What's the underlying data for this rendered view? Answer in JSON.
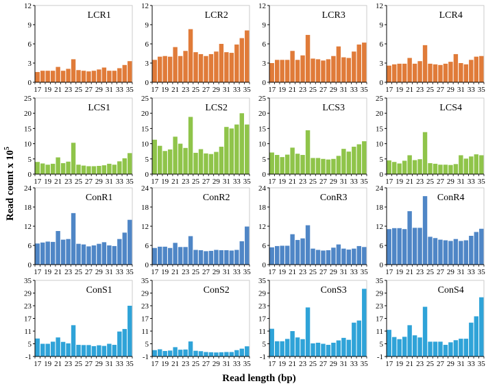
{
  "figure": {
    "ylabel": "Read count x 10",
    "ylabel_sup": "5",
    "xlabel": "Read length (bp)"
  },
  "colors": {
    "LCR": "#e07b39",
    "LCS": "#8fc44a",
    "ConR": "#4f86c6",
    "ConS": "#2fa3d8"
  },
  "chart_data": [
    {
      "type": "bar",
      "panels": [
        {
          "title": "LCR1",
          "values": [
            1.6,
            1.8,
            1.8,
            1.8,
            2.4,
            1.8,
            2.1,
            3.6,
            1.9,
            1.8,
            1.7,
            1.8,
            2.0,
            2.3,
            1.8,
            1.8,
            2.2,
            2.7,
            3.3
          ]
        },
        {
          "title": "LCR2",
          "values": [
            3.5,
            4.0,
            4.1,
            4.0,
            5.5,
            4.1,
            4.9,
            8.3,
            4.7,
            4.4,
            4.1,
            4.4,
            4.8,
            6.0,
            4.7,
            4.6,
            5.9,
            6.9,
            8.1
          ]
        },
        {
          "title": "LCR3",
          "values": [
            3.0,
            3.5,
            3.5,
            3.5,
            4.9,
            3.5,
            4.2,
            7.4,
            3.7,
            3.6,
            3.4,
            3.6,
            4.1,
            5.6,
            3.9,
            3.8,
            4.8,
            5.9,
            6.2
          ]
        },
        {
          "title": "LCR4",
          "values": [
            2.6,
            2.8,
            2.9,
            2.9,
            3.8,
            2.9,
            3.3,
            5.8,
            2.9,
            2.8,
            2.7,
            2.9,
            3.2,
            4.4,
            3.0,
            2.8,
            3.5,
            4.0,
            4.1
          ]
        }
      ],
      "categories": [
        "17",
        "18",
        "19",
        "20",
        "21",
        "22",
        "23",
        "24",
        "25",
        "26",
        "27",
        "28",
        "29",
        "30",
        "31",
        "32",
        "33",
        "34",
        "35"
      ],
      "tick_labels": [
        "17",
        "19",
        "21",
        "23",
        "25",
        "27",
        "29",
        "31",
        "33",
        "35"
      ],
      "yticks": [
        "0",
        "3",
        "6",
        "9",
        "12"
      ],
      "ylim": [
        0,
        12
      ]
    },
    {
      "type": "bar",
      "panels": [
        {
          "title": "LCS1",
          "values": [
            4.0,
            3.5,
            3.1,
            3.4,
            5.5,
            3.6,
            4.1,
            10.3,
            3.1,
            2.8,
            2.6,
            2.6,
            2.7,
            2.9,
            3.4,
            3.1,
            4.2,
            5.2,
            6.9
          ]
        },
        {
          "title": "LCS2",
          "values": [
            11.3,
            9.3,
            7.6,
            8.1,
            12.3,
            10.0,
            8.6,
            18.8,
            7.0,
            8.2,
            6.8,
            6.6,
            7.3,
            9.0,
            15.5,
            15.0,
            16.3,
            20.0,
            16.3
          ]
        },
        {
          "title": "LCS3",
          "values": [
            7.1,
            6.3,
            5.6,
            6.4,
            8.7,
            6.7,
            6.3,
            14.4,
            5.3,
            5.3,
            5.0,
            4.8,
            5.0,
            6.0,
            8.3,
            7.4,
            9.0,
            9.8,
            10.8
          ]
        },
        {
          "title": "LCS4",
          "values": [
            4.5,
            4.0,
            3.5,
            4.4,
            6.2,
            4.6,
            4.9,
            13.8,
            3.6,
            3.4,
            3.1,
            3.1,
            3.0,
            3.3,
            6.2,
            5.1,
            5.8,
            6.5,
            6.2
          ]
        }
      ],
      "categories": [
        "17",
        "18",
        "19",
        "20",
        "21",
        "22",
        "23",
        "24",
        "25",
        "26",
        "27",
        "28",
        "29",
        "30",
        "31",
        "32",
        "33",
        "34",
        "35"
      ],
      "tick_labels": [
        "17",
        "19",
        "21",
        "23",
        "25",
        "27",
        "29",
        "31",
        "33",
        "35"
      ],
      "yticks": [
        "0",
        "5",
        "10",
        "15",
        "20",
        "25"
      ],
      "ylim": [
        0,
        25
      ]
    },
    {
      "type": "bar",
      "panels": [
        {
          "title": "ConR1",
          "values": [
            6.6,
            6.9,
            7.2,
            7.1,
            10.5,
            7.8,
            8.0,
            16.1,
            6.5,
            6.3,
            5.7,
            6.0,
            6.5,
            7.0,
            6.0,
            5.8,
            8.0,
            10.0,
            14.0
          ]
        },
        {
          "title": "ConR2",
          "values": [
            5.2,
            5.6,
            5.6,
            5.2,
            6.8,
            5.5,
            5.5,
            8.9,
            4.6,
            4.5,
            4.2,
            4.3,
            4.6,
            4.5,
            4.5,
            4.4,
            4.6,
            7.3,
            11.9
          ]
        },
        {
          "title": "ConR3",
          "values": [
            5.4,
            5.8,
            5.9,
            5.9,
            9.5,
            7.7,
            8.2,
            12.3,
            5.0,
            4.6,
            4.4,
            4.5,
            5.3,
            6.3,
            5.0,
            4.7,
            5.0,
            5.8,
            5.5
          ]
        },
        {
          "title": "ConR4",
          "values": [
            11.1,
            11.4,
            11.4,
            11.1,
            16.7,
            11.5,
            11.5,
            21.4,
            8.7,
            8.3,
            7.8,
            7.6,
            7.4,
            8.0,
            7.4,
            7.6,
            9.0,
            10.2,
            11.2
          ]
        }
      ],
      "categories": [
        "17",
        "18",
        "19",
        "20",
        "21",
        "22",
        "23",
        "24",
        "25",
        "26",
        "27",
        "28",
        "29",
        "30",
        "31",
        "32",
        "33",
        "34",
        "35"
      ],
      "tick_labels": [
        "17",
        "19",
        "21",
        "23",
        "25",
        "27",
        "29",
        "31",
        "33",
        "35"
      ],
      "yticks": [
        "0",
        "6",
        "12",
        "18",
        "24"
      ],
      "ylim": [
        0,
        24
      ]
    },
    {
      "type": "bar",
      "panels": [
        {
          "title": "ConS1",
          "values": [
            7.5,
            5.0,
            5.0,
            6.0,
            8.0,
            5.9,
            5.2,
            13.8,
            4.5,
            4.4,
            4.4,
            3.9,
            4.3,
            4.0,
            5.0,
            4.5,
            10.8,
            12.0,
            23.0
          ]
        },
        {
          "title": "ConS2",
          "values": [
            2.0,
            2.4,
            1.6,
            1.8,
            3.4,
            2.2,
            2.3,
            6.1,
            1.7,
            1.5,
            1.1,
            1.0,
            0.9,
            1.0,
            1.1,
            1.1,
            2.0,
            2.7,
            3.8
          ]
        },
        {
          "title": "ConS3",
          "values": [
            12.1,
            6.2,
            6.2,
            7.3,
            11.0,
            8.0,
            7.2,
            22.2,
            5.2,
            5.5,
            5.0,
            4.5,
            5.5,
            6.6,
            7.8,
            6.9,
            15.0,
            16.0,
            31.0
          ]
        },
        {
          "title": "ConS4",
          "values": [
            11.6,
            8.2,
            7.2,
            8.3,
            13.8,
            9.0,
            8.0,
            22.5,
            6.0,
            6.0,
            6.0,
            4.5,
            5.7,
            6.7,
            7.4,
            7.4,
            15.0,
            18.0,
            27.0
          ]
        }
      ],
      "categories": [
        "17",
        "18",
        "19",
        "20",
        "21",
        "22",
        "23",
        "24",
        "25",
        "26",
        "27",
        "28",
        "29",
        "30",
        "31",
        "32",
        "33",
        "34",
        "35"
      ],
      "tick_labels": [
        "17",
        "19",
        "21",
        "23",
        "25",
        "27",
        "29",
        "31",
        "33",
        "35"
      ],
      "yticks": [
        "-1",
        "5",
        "11",
        "17",
        "23",
        "29",
        "35"
      ],
      "ylim": [
        -1,
        35
      ]
    }
  ]
}
